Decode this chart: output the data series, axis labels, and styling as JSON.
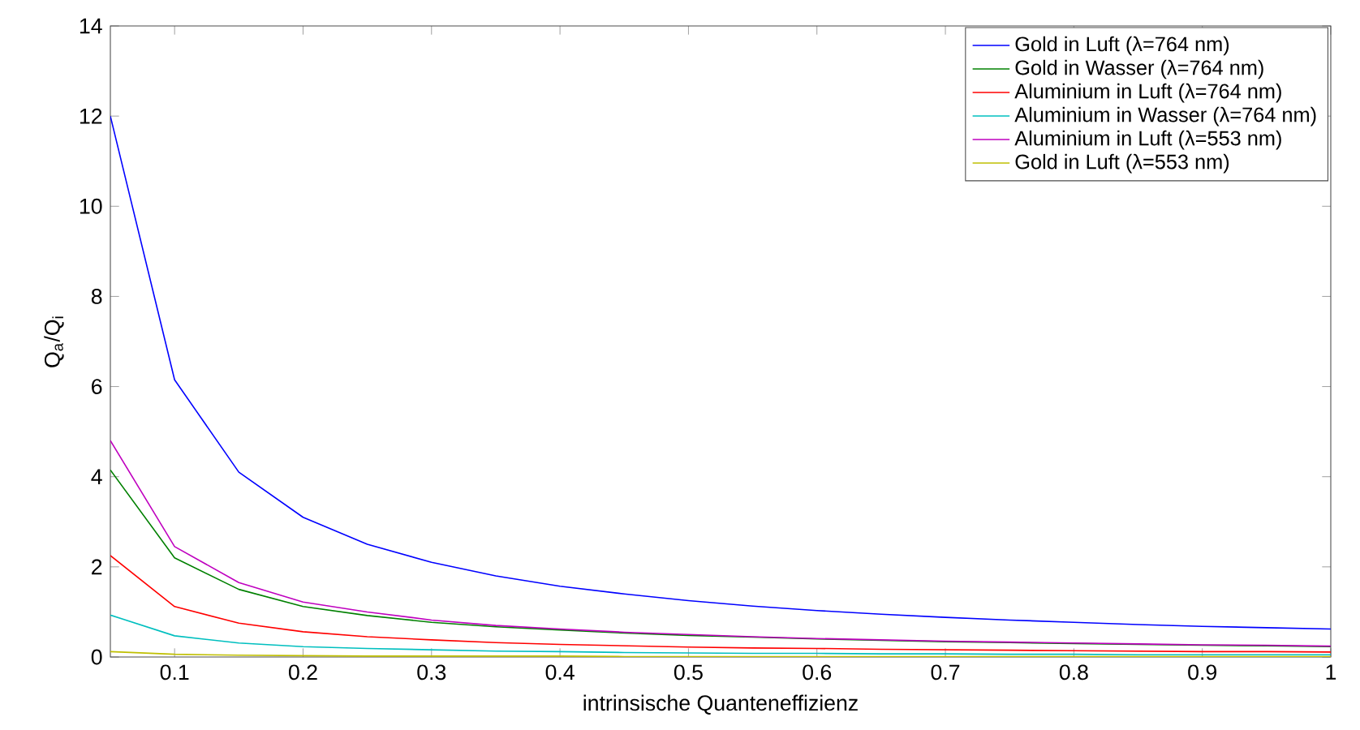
{
  "chart_data": {
    "type": "line",
    "xlabel": "intrinsische Quanteneffizienz",
    "ylabel": "Q$_{a}$/Q$_{i}$",
    "x": [
      0.05,
      0.1,
      0.15,
      0.2,
      0.25,
      0.3,
      0.35,
      0.4,
      0.45,
      0.5,
      0.55,
      0.6,
      0.65,
      0.7,
      0.75,
      0.8,
      0.85,
      0.9,
      0.95,
      1.0
    ],
    "series": [
      {
        "name": "Gold in Luft (λ=764 nm)",
        "color": "#0000ff",
        "values": [
          12,
          6.15,
          4.1,
          3.1,
          2.5,
          2.1,
          1.8,
          1.57,
          1.4,
          1.25,
          1.13,
          1.03,
          0.95,
          0.88,
          0.82,
          0.77,
          0.72,
          0.68,
          0.65,
          0.62
        ]
      },
      {
        "name": "Gold in Wasser (λ=764 nm)",
        "color": "#008000",
        "values": [
          4.15,
          2.2,
          1.5,
          1.12,
          0.92,
          0.77,
          0.67,
          0.6,
          0.53,
          0.48,
          0.44,
          0.4,
          0.37,
          0.34,
          0.32,
          0.3,
          0.28,
          0.26,
          0.25,
          0.23
        ]
      },
      {
        "name": "Aluminium in Luft (λ=764 nm)",
        "color": "#ff0000",
        "values": [
          2.25,
          1.12,
          0.75,
          0.56,
          0.45,
          0.38,
          0.32,
          0.28,
          0.25,
          0.22,
          0.2,
          0.19,
          0.17,
          0.16,
          0.15,
          0.14,
          0.13,
          0.12,
          0.12,
          0.11
        ]
      },
      {
        "name": "Aluminium in Wasser (λ=764 nm)",
        "color": "#00bfbf",
        "values": [
          0.93,
          0.47,
          0.31,
          0.23,
          0.19,
          0.16,
          0.13,
          0.12,
          0.1,
          0.09,
          0.08,
          0.08,
          0.07,
          0.07,
          0.06,
          0.06,
          0.05,
          0.05,
          0.05,
          0.05
        ]
      },
      {
        "name": "Aluminium in Luft (λ=553 nm)",
        "color": "#bf00bf",
        "values": [
          4.8,
          2.45,
          1.65,
          1.22,
          1.0,
          0.82,
          0.7,
          0.62,
          0.55,
          0.5,
          0.45,
          0.41,
          0.38,
          0.35,
          0.33,
          0.31,
          0.29,
          0.27,
          0.26,
          0.24
        ]
      },
      {
        "name": "Gold in Luft (λ=553 nm)",
        "color": "#bfbf00",
        "values": [
          0.12,
          0.06,
          0.04,
          0.03,
          0.02,
          0.02,
          0.02,
          0.02,
          0.01,
          0.01,
          0.01,
          0.01,
          0.01,
          0.01,
          0.01,
          0.01,
          0.01,
          0.01,
          0.01,
          0.01
        ]
      }
    ],
    "xlim": [
      0.05,
      1.0
    ],
    "ylim": [
      0,
      14
    ],
    "xticks": [
      0.1,
      0.2,
      0.3,
      0.4,
      0.5,
      0.6,
      0.7,
      0.8,
      0.9,
      1
    ],
    "yticks": [
      0,
      2,
      4,
      6,
      8,
      10,
      12,
      14
    ],
    "legend": "top right",
    "grid": false,
    "marker": "none",
    "line_style": "solid"
  }
}
